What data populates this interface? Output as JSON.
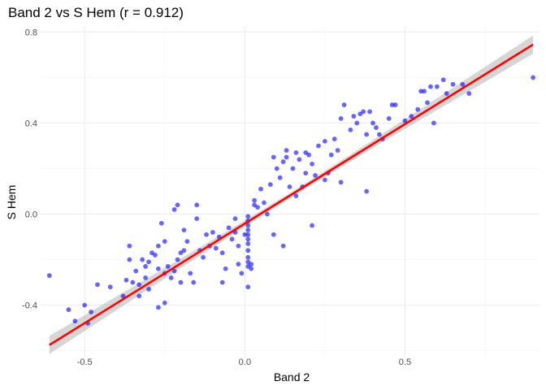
{
  "chart_data": {
    "type": "scatter",
    "title": "Band 2 vs S Hem (r = 0.912)",
    "xlabel": "Band 2",
    "ylabel": "S Hem",
    "xlim": [
      -0.64,
      0.92
    ],
    "ylim": [
      -0.63,
      0.83
    ],
    "xticks": [
      -0.5,
      0.0,
      0.5
    ],
    "xtick_labels": [
      "-0.5",
      "0.0",
      "0.5"
    ],
    "yticks": [
      -0.4,
      0.0,
      0.4,
      0.8
    ],
    "ytick_labels": [
      "-0.4",
      "0.0",
      "0.4",
      "0.8"
    ],
    "grid": true,
    "legend": "none",
    "colors": {
      "points": "#0000ff",
      "fit_line": "#ff0000",
      "confidence_band": "#999999"
    },
    "fit": {
      "x": [
        -0.61,
        0.9
      ],
      "y": [
        -0.575,
        0.745
      ],
      "ci_halfwidth_ends": 0.04,
      "ci_halfwidth_center": 0.012
    },
    "points": {
      "x": [
        -0.61,
        -0.55,
        -0.53,
        -0.5,
        -0.49,
        -0.48,
        -0.46,
        -0.42,
        -0.38,
        -0.37,
        -0.36,
        -0.36,
        -0.35,
        -0.34,
        -0.33,
        -0.32,
        -0.31,
        -0.31,
        -0.3,
        -0.3,
        -0.29,
        -0.28,
        -0.27,
        -0.27,
        -0.26,
        -0.25,
        -0.25,
        -0.24,
        -0.23,
        -0.22,
        -0.22,
        -0.21,
        -0.2,
        -0.2,
        -0.19,
        -0.18,
        -0.17,
        -0.16,
        -0.15,
        -0.14,
        -0.13,
        -0.12,
        -0.11,
        -0.1,
        -0.09,
        -0.08,
        -0.07,
        -0.06,
        -0.05,
        -0.04,
        -0.03,
        -0.02,
        -0.02,
        -0.01,
        0.0,
        0.01,
        0.01,
        0.01,
        0.01,
        0.01,
        0.01,
        0.01,
        0.01,
        0.01,
        0.01,
        0.01,
        0.01,
        0.02,
        0.02,
        0.03,
        0.04,
        0.05,
        0.06,
        0.07,
        0.08,
        0.09,
        0.1,
        0.11,
        0.12,
        0.13,
        0.14,
        0.15,
        0.16,
        0.17,
        0.18,
        0.19,
        0.2,
        0.21,
        0.22,
        0.23,
        0.25,
        0.26,
        0.27,
        0.28,
        0.29,
        0.3,
        0.31,
        0.33,
        0.34,
        0.35,
        0.36,
        0.37,
        0.38,
        0.39,
        0.4,
        0.41,
        0.42,
        0.43,
        0.45,
        0.46,
        0.47,
        0.5,
        0.52,
        0.54,
        0.55,
        0.56,
        0.57,
        0.58,
        0.59,
        0.6,
        0.62,
        0.63,
        0.65,
        0.68,
        0.7,
        0.9,
        -0.21,
        -0.19,
        -0.27,
        -0.33,
        0.19,
        0.25,
        0.38,
        0.09,
        -0.25,
        -0.15,
        0.16,
        0.03,
        -0.07,
        -0.03,
        0.12,
        0.21,
        0.13,
        0.3
      ],
      "y": [
        -0.27,
        -0.42,
        -0.47,
        -0.4,
        -0.48,
        -0.43,
        -0.31,
        -0.32,
        -0.36,
        -0.29,
        -0.14,
        -0.2,
        -0.3,
        -0.25,
        -0.31,
        -0.2,
        -0.23,
        -0.28,
        -0.33,
        -0.21,
        -0.17,
        -0.18,
        -0.41,
        -0.24,
        -0.04,
        -0.39,
        -0.26,
        -0.23,
        -0.28,
        0.02,
        -0.25,
        -0.2,
        -0.3,
        -0.17,
        -0.16,
        -0.12,
        -0.26,
        -0.3,
        -0.02,
        -0.16,
        -0.19,
        -0.09,
        -0.14,
        -0.08,
        -0.15,
        -0.1,
        -0.17,
        -0.24,
        -0.06,
        -0.11,
        -0.08,
        -0.14,
        -0.22,
        -0.26,
        -0.09,
        -0.01,
        -0.03,
        -0.05,
        -0.07,
        -0.09,
        -0.11,
        -0.13,
        -0.16,
        -0.19,
        -0.21,
        -0.23,
        -0.32,
        -0.22,
        -0.24,
        0.06,
        0.03,
        0.11,
        0.05,
        0.0,
        0.13,
        0.25,
        0.2,
        0.16,
        0.23,
        0.28,
        0.12,
        0.2,
        0.27,
        0.24,
        0.12,
        0.18,
        0.26,
        0.22,
        0.17,
        0.3,
        0.32,
        0.18,
        0.26,
        0.33,
        0.28,
        0.42,
        0.48,
        0.37,
        0.43,
        0.4,
        0.44,
        0.45,
        0.35,
        0.45,
        0.4,
        0.38,
        0.35,
        0.33,
        0.42,
        0.48,
        0.48,
        0.41,
        0.43,
        0.46,
        0.54,
        0.54,
        0.49,
        0.56,
        0.4,
        0.56,
        0.59,
        0.53,
        0.57,
        0.57,
        0.53,
        0.6,
        0.04,
        -0.07,
        -0.14,
        -0.36,
        0.27,
        0.15,
        0.1,
        -0.09,
        -0.12,
        0.04,
        0.08,
        0.04,
        -0.3,
        -0.02,
        -0.14,
        -0.05,
        0.25,
        0.14
      ]
    }
  }
}
